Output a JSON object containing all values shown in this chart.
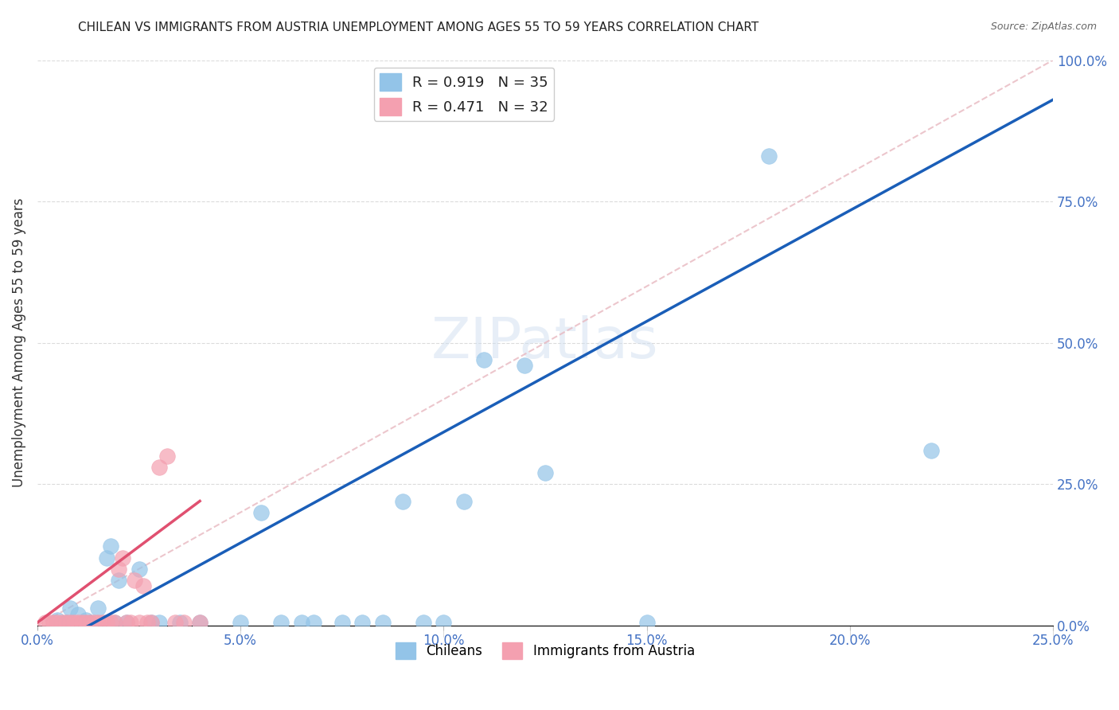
{
  "title": "CHILEAN VS IMMIGRANTS FROM AUSTRIA UNEMPLOYMENT AMONG AGES 55 TO 59 YEARS CORRELATION CHART",
  "source": "Source: ZipAtlas.com",
  "xlabel": "",
  "ylabel": "Unemployment Among Ages 55 to 59 years",
  "xlim": [
    0.0,
    0.25
  ],
  "ylim": [
    0.0,
    1.0
  ],
  "xticks": [
    0.0,
    0.05,
    0.1,
    0.15,
    0.2,
    0.25
  ],
  "yticks": [
    0.0,
    0.25,
    0.5,
    0.75,
    1.0
  ],
  "xtick_labels": [
    "0.0%",
    "5.0%",
    "10.0%",
    "15.0%",
    "20.0%",
    "25.0%"
  ],
  "ytick_labels": [
    "0.0%",
    "25.0%",
    "50.0%",
    "75.0%",
    "100.0%"
  ],
  "legend_entries": [
    {
      "label": "R = 0.919   N = 35",
      "color": "#aec6e8"
    },
    {
      "label": "R = 0.471   N = 32",
      "color": "#f4b8c1"
    }
  ],
  "bottom_legend": [
    {
      "label": "Chileans",
      "color": "#aec6e8"
    },
    {
      "label": "Immigrants from Austria",
      "color": "#f4b8c1"
    }
  ],
  "chilean_scatter": [
    [
      0.005,
      0.01
    ],
    [
      0.007,
      0.005
    ],
    [
      0.008,
      0.03
    ],
    [
      0.01,
      0.02
    ],
    [
      0.012,
      0.01
    ],
    [
      0.013,
      0.005
    ],
    [
      0.015,
      0.03
    ],
    [
      0.017,
      0.12
    ],
    [
      0.018,
      0.14
    ],
    [
      0.019,
      0.005
    ],
    [
      0.02,
      0.08
    ],
    [
      0.022,
      0.005
    ],
    [
      0.025,
      0.1
    ],
    [
      0.028,
      0.005
    ],
    [
      0.03,
      0.005
    ],
    [
      0.035,
      0.005
    ],
    [
      0.04,
      0.005
    ],
    [
      0.05,
      0.005
    ],
    [
      0.055,
      0.2
    ],
    [
      0.06,
      0.005
    ],
    [
      0.065,
      0.005
    ],
    [
      0.068,
      0.005
    ],
    [
      0.075,
      0.005
    ],
    [
      0.08,
      0.005
    ],
    [
      0.085,
      0.005
    ],
    [
      0.09,
      0.22
    ],
    [
      0.095,
      0.005
    ],
    [
      0.1,
      0.005
    ],
    [
      0.105,
      0.22
    ],
    [
      0.11,
      0.47
    ],
    [
      0.12,
      0.46
    ],
    [
      0.125,
      0.27
    ],
    [
      0.15,
      0.005
    ],
    [
      0.18,
      0.83
    ],
    [
      0.22,
      0.31
    ]
  ],
  "austrian_scatter": [
    [
      0.002,
      0.005
    ],
    [
      0.003,
      0.005
    ],
    [
      0.004,
      0.005
    ],
    [
      0.005,
      0.005
    ],
    [
      0.006,
      0.005
    ],
    [
      0.007,
      0.005
    ],
    [
      0.008,
      0.005
    ],
    [
      0.009,
      0.005
    ],
    [
      0.01,
      0.005
    ],
    [
      0.011,
      0.005
    ],
    [
      0.012,
      0.005
    ],
    [
      0.013,
      0.005
    ],
    [
      0.014,
      0.005
    ],
    [
      0.015,
      0.005
    ],
    [
      0.016,
      0.005
    ],
    [
      0.017,
      0.005
    ],
    [
      0.018,
      0.005
    ],
    [
      0.019,
      0.005
    ],
    [
      0.02,
      0.1
    ],
    [
      0.021,
      0.12
    ],
    [
      0.022,
      0.005
    ],
    [
      0.023,
      0.005
    ],
    [
      0.024,
      0.08
    ],
    [
      0.025,
      0.005
    ],
    [
      0.026,
      0.07
    ],
    [
      0.027,
      0.005
    ],
    [
      0.028,
      0.005
    ],
    [
      0.03,
      0.28
    ],
    [
      0.032,
      0.3
    ],
    [
      0.034,
      0.005
    ],
    [
      0.036,
      0.005
    ],
    [
      0.04,
      0.005
    ]
  ],
  "blue_line_x": [
    0.0,
    0.25
  ],
  "blue_line_y": [
    -0.05,
    0.93
  ],
  "pink_line_x": [
    0.0,
    0.04
  ],
  "pink_line_y": [
    0.005,
    0.22
  ],
  "diag_line_x": [
    0.0,
    0.25
  ],
  "diag_line_y": [
    0.0,
    1.0
  ],
  "blue_scatter_color": "#93c4e8",
  "pink_scatter_color": "#f4a0b0",
  "blue_line_color": "#1a5eb8",
  "pink_line_color": "#e05070",
  "diag_line_color": "#e8b8c0",
  "grid_color": "#cccccc",
  "axis_label_color": "#4472c4",
  "title_color": "#222222",
  "background_color": "#ffffff"
}
